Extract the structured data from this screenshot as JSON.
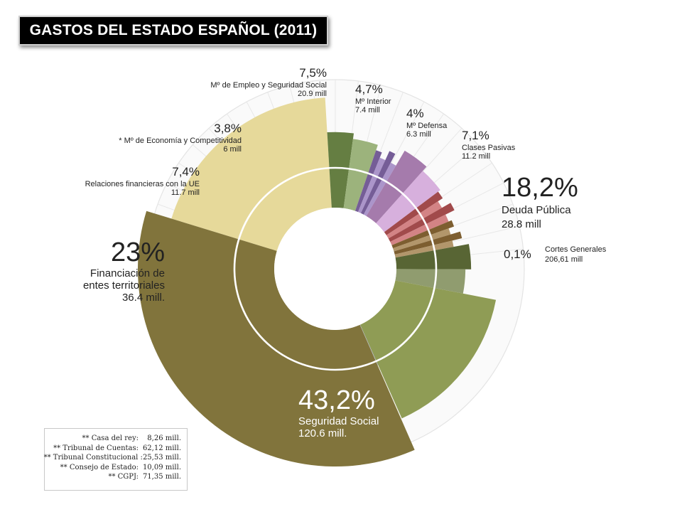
{
  "title": "GASTOS DEL ESTADO ESPAÑOL (2011)",
  "chart_data": {
    "type": "pie",
    "variant": "donut-polar",
    "slices": [
      {
        "key": "seguridad",
        "pct_label": "43,2%",
        "value": 43.2,
        "name": "Seguridad Social",
        "amount": "120.6 mill.",
        "color": "#81743c"
      },
      {
        "key": "financiacion",
        "pct_label": "23%",
        "value": 23.0,
        "name": "Financiación de entes territoriales",
        "amount": "36.4 mill.",
        "color": "#e6d99a"
      },
      {
        "key": "ue",
        "pct_label": "7,4%",
        "value": 7.4,
        "name": "Relaciones financieras con la UE",
        "amount": "11.7 mill",
        "color": "#7b9a50"
      },
      {
        "key": "economia",
        "pct_label": "3,8%",
        "value": 3.8,
        "name": "* Mº de Economía y Competitividad",
        "amount": "6 mill",
        "color": "#8f72b8"
      },
      {
        "key": "empleo",
        "pct_label": "7,5%",
        "value": 7.5,
        "name": "Mº de Empleo y Seguridad Social",
        "amount": "20.9 mill",
        "color": "#c996d2"
      },
      {
        "key": "interior",
        "pct_label": "4,7%",
        "value": 4.7,
        "name": "Mº Interior",
        "amount": "7.4 mill",
        "color": "#c45a5c"
      },
      {
        "key": "defensa",
        "pct_label": "4%",
        "value": 4.0,
        "name": "Mº Defensa",
        "amount": "6.3 mill",
        "color": "#98733a"
      },
      {
        "key": "clases",
        "pct_label": "7,1%",
        "value": 7.1,
        "name": "Clases Pasivas",
        "amount": "11.2 mill",
        "color": "#6b7b3f"
      },
      {
        "key": "deuda",
        "pct_label": "18,2%",
        "value": 18.2,
        "name": "Deuda Pública",
        "amount": "28.8 mill",
        "color": "#8f9c55"
      },
      {
        "key": "cortes",
        "pct_label": "0,1%",
        "value": 0.1,
        "name": "Cortes Generales",
        "amount": "206,61 mill",
        "color": "#9fa8c8"
      }
    ],
    "labels": {
      "seguridad": {
        "pct": "43,2%",
        "lines": [
          "Seguridad Social",
          "120.6 mill."
        ]
      },
      "financiacion": {
        "pct": "23%",
        "lines": [
          "Financiación de",
          "entes territoriales",
          "36.4 mill."
        ]
      },
      "ue": {
        "pct": "7,4%",
        "lines": [
          "Relaciones financieras con la UE",
          "11.7 mill"
        ]
      },
      "economia": {
        "pct": "3,8%",
        "lines": [
          "* Mº de Economía y Competitividad",
          "6 mill"
        ]
      },
      "empleo": {
        "pct": "7,5%",
        "lines": [
          "Mº de Empleo y Seguridad Social",
          "20.9 mill"
        ]
      },
      "interior": {
        "pct": "4,7%",
        "lines": [
          "Mº Interior",
          "7.4 mill"
        ]
      },
      "defensa": {
        "pct": "4%",
        "lines": [
          "Mº Defensa",
          "6.3 mill"
        ]
      },
      "clases": {
        "pct": "7,1%",
        "lines": [
          "Clases Pasivas",
          "11.2 mill"
        ]
      },
      "deuda": {
        "pct": "18,2%",
        "lines": [
          "Deuda Pública",
          "28.8 mill"
        ]
      },
      "cortes": {
        "pct": "0,1%",
        "lines": [
          "Cortes Generales",
          "206,61 mill"
        ]
      }
    }
  },
  "notes": [
    {
      "label": "** Casa del rey:",
      "value": "8,26 mill."
    },
    {
      "label": "** Tribunal de Cuentas:",
      "value": "62,12 mill."
    },
    {
      "label": "** Tribunal Constitucional :",
      "value": "25,53 mill."
    },
    {
      "label": "** Consejo de Estado:",
      "value": "10,09 mill."
    },
    {
      "label": "** CGPJ:",
      "value": "71,35 mill."
    }
  ]
}
